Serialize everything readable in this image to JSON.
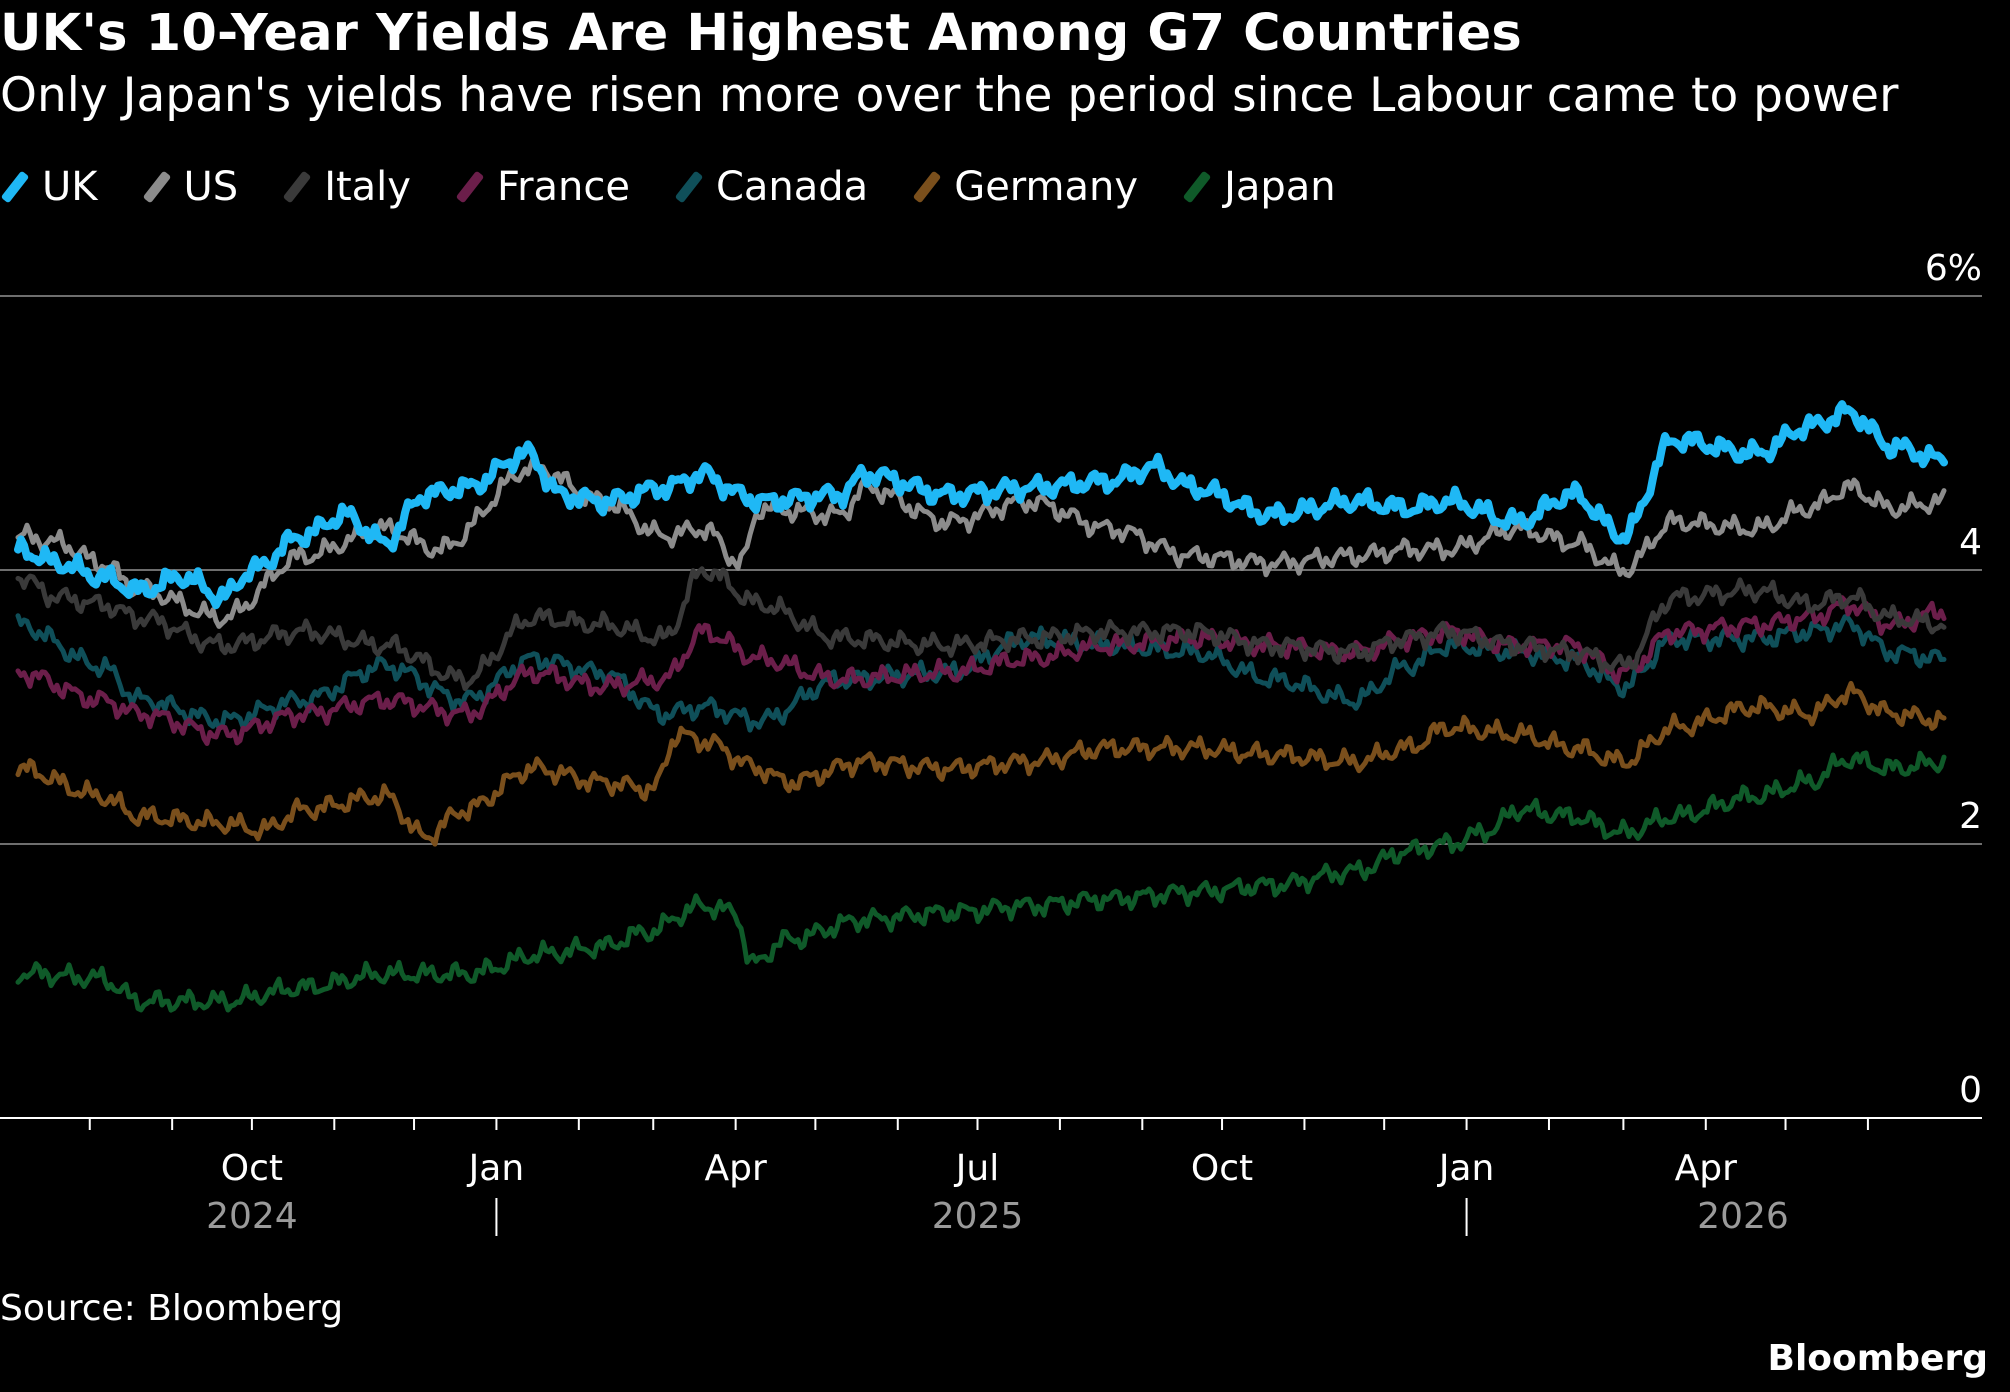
{
  "chart_data": {
    "type": "line",
    "title": "UK's 10-Year Yields Are Highest Among G7 Countries",
    "subtitle": "Only Japan's yields have risen more over the period since Labour came to power",
    "x_range": [
      "2024-07-05",
      "2026-06-30"
    ],
    "ylim": [
      0,
      6
    ],
    "yticks": [
      0,
      2,
      4,
      6
    ],
    "ytick_labels": [
      "0",
      "2",
      "4",
      "6%"
    ],
    "grid": true,
    "legend_position": "top-left",
    "month_labels": [
      {
        "date": "2024-10-01",
        "label": "Oct"
      },
      {
        "date": "2025-01-01",
        "label": "Jan"
      },
      {
        "date": "2025-04-01",
        "label": "Apr"
      },
      {
        "date": "2025-07-01",
        "label": "Jul"
      },
      {
        "date": "2025-10-01",
        "label": "Oct"
      },
      {
        "date": "2026-01-01",
        "label": "Jan"
      },
      {
        "date": "2026-04-01",
        "label": "Apr"
      }
    ],
    "year_labels": [
      {
        "date": "2024-10-01",
        "label": "2024"
      },
      {
        "date": "2025-07-01",
        "label": "2025"
      },
      {
        "date": "2026-04-15",
        "label": "2026"
      }
    ],
    "year_separators": [
      "2025-01-01",
      "2026-01-01"
    ],
    "series": [
      {
        "name": "Japan",
        "color": "#0f5a29",
        "x": [
          "2024-07-05",
          "2024-08-05",
          "2024-08-20",
          "2024-09-20",
          "2024-10-20",
          "2024-11-20",
          "2024-12-20",
          "2025-01-20",
          "2025-02-10",
          "2025-02-25",
          "2025-03-20",
          "2025-04-01",
          "2025-04-07",
          "2025-04-20",
          "2025-05-20",
          "2025-06-20",
          "2025-07-20",
          "2025-08-20",
          "2025-09-20",
          "2025-10-20",
          "2025-11-20",
          "2025-12-10",
          "2025-12-25",
          "2026-01-10",
          "2026-01-20",
          "2026-02-10",
          "2026-03-01",
          "2026-03-20",
          "2026-04-20",
          "2026-05-10",
          "2026-05-25",
          "2026-06-10",
          "2026-06-30"
        ],
        "y": [
          1.06,
          1.02,
          0.85,
          0.85,
          0.95,
          1.05,
          1.05,
          1.2,
          1.25,
          1.35,
          1.55,
          1.5,
          1.12,
          1.3,
          1.45,
          1.5,
          1.55,
          1.6,
          1.65,
          1.7,
          1.8,
          1.95,
          2.0,
          2.1,
          2.25,
          2.2,
          2.08,
          2.2,
          2.35,
          2.45,
          2.62,
          2.55,
          2.6
        ]
      },
      {
        "name": "Germany",
        "color": "#7a4f1c",
        "x": [
          "2024-07-05",
          "2024-08-05",
          "2024-08-20",
          "2024-09-20",
          "2024-10-05",
          "2024-10-20",
          "2024-11-20",
          "2024-12-05",
          "2024-12-20",
          "2025-01-15",
          "2025-02-10",
          "2025-03-01",
          "2025-03-10",
          "2025-03-20",
          "2025-04-10",
          "2025-04-20",
          "2025-05-20",
          "2025-06-20",
          "2025-07-20",
          "2025-08-20",
          "2025-09-20",
          "2025-10-20",
          "2025-11-20",
          "2025-12-10",
          "2025-12-25",
          "2026-01-20",
          "2026-02-10",
          "2026-03-01",
          "2026-03-20",
          "2026-04-20",
          "2026-05-10",
          "2026-05-25",
          "2026-06-10",
          "2026-06-30"
        ],
        "y": [
          2.55,
          2.35,
          2.2,
          2.15,
          2.1,
          2.25,
          2.35,
          2.05,
          2.25,
          2.55,
          2.45,
          2.4,
          2.8,
          2.75,
          2.55,
          2.45,
          2.6,
          2.55,
          2.6,
          2.7,
          2.7,
          2.65,
          2.6,
          2.7,
          2.85,
          2.8,
          2.7,
          2.6,
          2.85,
          3.0,
          2.95,
          3.1,
          2.95,
          2.9
        ]
      },
      {
        "name": "Canada",
        "color": "#0f4f59",
        "x": [
          "2024-07-05",
          "2024-08-05",
          "2024-08-20",
          "2024-09-20",
          "2024-10-20",
          "2024-11-20",
          "2024-12-20",
          "2025-01-15",
          "2025-02-10",
          "2025-03-05",
          "2025-03-20",
          "2025-04-10",
          "2025-05-10",
          "2025-06-20",
          "2025-07-20",
          "2025-08-20",
          "2025-09-20",
          "2025-10-20",
          "2025-11-20",
          "2025-12-10",
          "2025-12-25",
          "2026-01-20",
          "2026-02-10",
          "2026-03-01",
          "2026-03-20",
          "2026-04-20",
          "2026-05-10",
          "2026-05-25",
          "2026-06-10",
          "2026-06-30"
        ],
        "y": [
          3.6,
          3.3,
          3.05,
          2.9,
          3.05,
          3.3,
          3.05,
          3.35,
          3.25,
          2.95,
          3.0,
          2.9,
          3.2,
          3.25,
          3.5,
          3.45,
          3.4,
          3.2,
          3.05,
          3.3,
          3.45,
          3.4,
          3.35,
          3.15,
          3.5,
          3.5,
          3.55,
          3.6,
          3.4,
          3.35
        ]
      },
      {
        "name": "France",
        "color": "#6b1e4a",
        "x": [
          "2024-07-05",
          "2024-08-05",
          "2024-08-20",
          "2024-09-20",
          "2024-10-20",
          "2024-11-20",
          "2024-12-20",
          "2025-01-15",
          "2025-02-10",
          "2025-03-05",
          "2025-03-20",
          "2025-04-10",
          "2025-05-10",
          "2025-06-20",
          "2025-07-20",
          "2025-08-20",
          "2025-09-20",
          "2025-10-20",
          "2025-11-20",
          "2025-12-10",
          "2025-12-25",
          "2026-01-20",
          "2026-02-10",
          "2026-03-01",
          "2026-03-20",
          "2026-04-20",
          "2026-05-10",
          "2026-05-25",
          "2026-06-10",
          "2026-06-30"
        ],
        "y": [
          3.25,
          3.05,
          2.95,
          2.8,
          2.95,
          3.05,
          2.95,
          3.25,
          3.15,
          3.2,
          3.55,
          3.35,
          3.2,
          3.25,
          3.35,
          3.45,
          3.5,
          3.45,
          3.4,
          3.5,
          3.55,
          3.45,
          3.45,
          3.25,
          3.55,
          3.6,
          3.65,
          3.75,
          3.6,
          3.7
        ]
      },
      {
        "name": "Italy",
        "color": "#3a3a3a",
        "x": [
          "2024-07-05",
          "2024-07-20",
          "2024-08-05",
          "2024-08-20",
          "2024-09-20",
          "2024-10-20",
          "2024-11-20",
          "2024-12-20",
          "2025-01-15",
          "2025-02-10",
          "2025-03-05",
          "2025-03-20",
          "2025-04-10",
          "2025-05-10",
          "2025-06-20",
          "2025-07-20",
          "2025-08-20",
          "2025-09-20",
          "2025-10-20",
          "2025-11-20",
          "2025-12-10",
          "2025-12-25",
          "2026-01-20",
          "2026-02-10",
          "2026-03-01",
          "2026-03-20",
          "2026-04-20",
          "2026-05-10",
          "2026-05-25",
          "2026-06-10",
          "2026-06-30"
        ],
        "y": [
          3.95,
          3.8,
          3.75,
          3.65,
          3.45,
          3.55,
          3.45,
          3.2,
          3.65,
          3.6,
          3.5,
          4.0,
          3.75,
          3.5,
          3.45,
          3.5,
          3.55,
          3.55,
          3.45,
          3.4,
          3.5,
          3.55,
          3.45,
          3.4,
          3.3,
          3.8,
          3.85,
          3.75,
          3.8,
          3.65,
          3.6
        ]
      },
      {
        "name": "US",
        "color": "#8c8c8c",
        "x": [
          "2024-07-05",
          "2024-07-20",
          "2024-08-05",
          "2024-08-20",
          "2024-09-20",
          "2024-10-20",
          "2024-11-20",
          "2024-12-10",
          "2025-01-15",
          "2025-02-10",
          "2025-03-05",
          "2025-03-20",
          "2025-04-03",
          "2025-04-10",
          "2025-05-10",
          "2025-05-20",
          "2025-06-20",
          "2025-07-20",
          "2025-08-20",
          "2025-09-20",
          "2025-10-20",
          "2025-11-20",
          "2025-12-10",
          "2025-12-25",
          "2026-01-20",
          "2026-02-10",
          "2026-03-01",
          "2026-03-20",
          "2026-04-20",
          "2026-05-10",
          "2026-05-25",
          "2026-06-10",
          "2026-06-30"
        ],
        "y": [
          4.25,
          4.2,
          4.05,
          3.85,
          3.65,
          4.1,
          4.3,
          4.15,
          4.75,
          4.5,
          4.25,
          4.3,
          4.05,
          4.45,
          4.4,
          4.6,
          4.35,
          4.5,
          4.3,
          4.1,
          4.05,
          4.1,
          4.15,
          4.15,
          4.3,
          4.2,
          4.0,
          4.35,
          4.3,
          4.45,
          4.6,
          4.45,
          4.5
        ]
      },
      {
        "name": "UK",
        "color": "#1fb8f5",
        "x": [
          "2024-07-05",
          "2024-07-20",
          "2024-08-05",
          "2024-08-20",
          "2024-09-05",
          "2024-09-20",
          "2024-10-01",
          "2024-10-20",
          "2024-11-05",
          "2024-11-20",
          "2024-12-05",
          "2024-12-20",
          "2025-01-13",
          "2025-01-25",
          "2025-02-10",
          "2025-03-05",
          "2025-03-20",
          "2025-04-03",
          "2025-04-10",
          "2025-05-10",
          "2025-05-20",
          "2025-06-20",
          "2025-07-20",
          "2025-08-20",
          "2025-09-05",
          "2025-09-20",
          "2025-10-20",
          "2025-11-20",
          "2025-12-10",
          "2025-12-25",
          "2026-01-20",
          "2026-02-10",
          "2026-03-01",
          "2026-03-20",
          "2026-04-20",
          "2026-05-10",
          "2026-05-25",
          "2026-06-10",
          "2026-06-30"
        ],
        "y": [
          4.15,
          4.05,
          3.95,
          3.85,
          3.95,
          3.8,
          4.0,
          4.25,
          4.4,
          4.2,
          4.55,
          4.6,
          4.85,
          4.55,
          4.5,
          4.6,
          4.7,
          4.55,
          4.5,
          4.55,
          4.7,
          4.55,
          4.6,
          4.65,
          4.75,
          4.6,
          4.4,
          4.5,
          4.45,
          4.5,
          4.35,
          4.55,
          4.25,
          4.95,
          4.85,
          5.05,
          5.15,
          4.9,
          4.8
        ]
      }
    ]
  },
  "source": "Source: Bloomberg",
  "brand": "Bloomberg"
}
